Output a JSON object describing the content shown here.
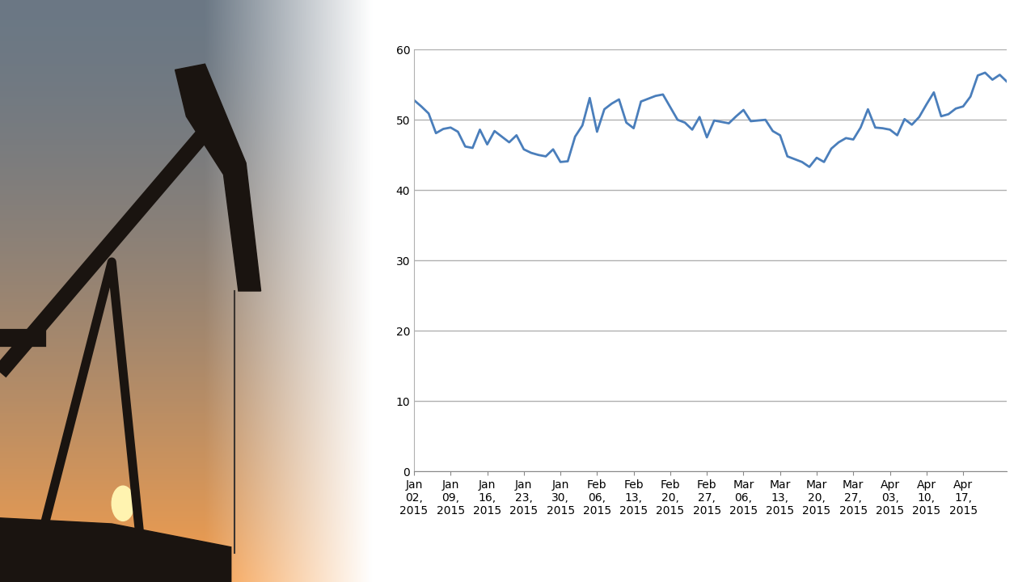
{
  "chart_data": {
    "type": "line",
    "categories": [
      "Jan\n02,\n2015",
      null,
      null,
      null,
      null,
      "Jan\n09,\n2015",
      null,
      null,
      null,
      null,
      "Jan\n16,\n2015",
      null,
      null,
      null,
      null,
      "Jan\n23,\n2015",
      null,
      null,
      null,
      null,
      "Jan\n30,\n2015",
      null,
      null,
      null,
      null,
      "Feb\n06,\n2015",
      null,
      null,
      null,
      null,
      "Feb\n13,\n2015",
      null,
      null,
      null,
      null,
      "Feb\n20,\n2015",
      null,
      null,
      null,
      null,
      "Feb\n27,\n2015",
      null,
      null,
      null,
      null,
      "Mar\n06,\n2015",
      null,
      null,
      null,
      null,
      "Mar\n13,\n2015",
      null,
      null,
      null,
      null,
      "Mar\n20,\n2015",
      null,
      null,
      null,
      null,
      "Mar\n27,\n2015",
      null,
      null,
      null,
      null,
      "Apr\n03,\n2015",
      null,
      null,
      null,
      null,
      "Apr\n10,\n2015",
      null,
      null,
      null,
      null,
      "Apr\n17,\n2015",
      null,
      null,
      null,
      null,
      null,
      null
    ],
    "values": [
      52.8,
      51.9,
      50.9,
      48.1,
      48.7,
      48.9,
      48.3,
      46.2,
      46.0,
      48.6,
      46.5,
      48.4,
      47.6,
      46.8,
      47.8,
      45.8,
      45.3,
      45.0,
      44.8,
      45.8,
      44.0,
      44.1,
      47.6,
      49.2,
      53.1,
      48.3,
      51.5,
      52.3,
      52.9,
      49.6,
      48.8,
      52.6,
      53.0,
      53.4,
      53.6,
      51.8,
      50.0,
      49.6,
      48.6,
      50.4,
      47.5,
      49.9,
      49.7,
      49.5,
      50.5,
      51.4,
      49.8,
      49.9,
      50.0,
      48.4,
      47.8,
      44.8,
      44.4,
      44.0,
      43.3,
      44.6,
      44.0,
      45.9,
      46.8,
      47.4,
      47.2,
      48.9,
      51.5,
      48.9,
      48.8,
      48.6,
      47.8,
      50.1,
      49.3,
      50.4,
      52.2,
      53.9,
      50.5,
      50.8,
      51.6,
      51.9,
      53.3,
      56.3,
      56.7,
      55.7,
      56.4,
      55.4
    ],
    "color": "#4a7ebb",
    "ylim": [
      0,
      60
    ],
    "yticks": [
      0,
      10,
      20,
      30,
      40,
      50,
      60
    ],
    "grid": true
  }
}
